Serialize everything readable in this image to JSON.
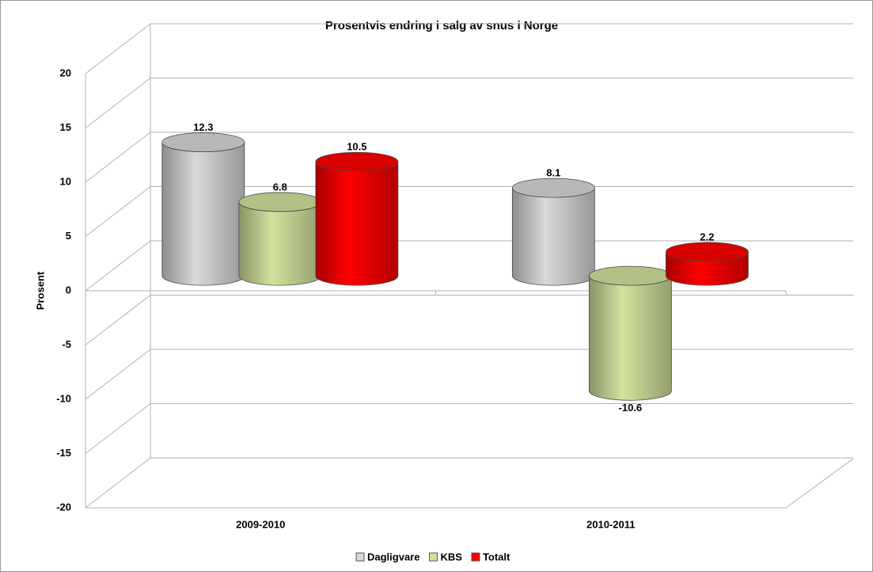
{
  "chart_data": {
    "type": "bar3d",
    "title": "Prosentvis endring i salg av snus i Norge",
    "y_label": "Prosent",
    "categories": [
      "2009-2010",
      "2010-2011"
    ],
    "series": [
      {
        "name": "Dagligvare",
        "color": "#d9d9d9",
        "values": [
          12.3,
          8.1
        ]
      },
      {
        "name": "KBS",
        "color": "#d3e29e",
        "values": [
          6.8,
          -10.6
        ]
      },
      {
        "name": "Totalt",
        "color": "#ff0000",
        "values": [
          10.5,
          2.2
        ]
      }
    ],
    "ylim": [
      -20,
      20
    ],
    "yticks": [
      -20,
      -15,
      -10,
      -5,
      0,
      5,
      10,
      15,
      20
    ],
    "grid": true,
    "legend": "bottom"
  }
}
